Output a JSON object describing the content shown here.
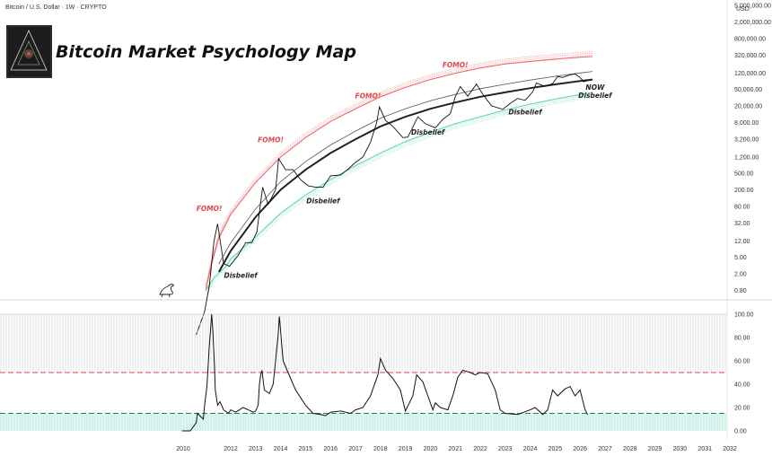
{
  "header": {
    "symbol": "Bitcoin / U.S. Dollar · 1W · CRYPTO",
    "currency": "USD"
  },
  "title": "Bitcoin Market Psychology Map",
  "annotations": {
    "fomo": [
      {
        "text": "FOMO!",
        "date": 2011.1,
        "price": 62
      },
      {
        "text": "FOMO!",
        "date": 2013.6,
        "price": 2700
      },
      {
        "text": "FOMO!",
        "date": 2017.5,
        "price": 30000
      },
      {
        "text": "FOMO!",
        "date": 2021.0,
        "price": 165000
      }
    ],
    "disbelief": [
      {
        "text": "Disbelief",
        "date": 2012.4,
        "price": 1.6
      },
      {
        "text": "Disbelief",
        "date": 2015.7,
        "price": 94
      },
      {
        "text": "Disbelief",
        "date": 2019.9,
        "price": 4100
      },
      {
        "text": "Disbelief",
        "date": 2023.8,
        "price": 12500
      }
    ],
    "now": {
      "line1": "NOW",
      "line2": "Disbelief",
      "date": 2026.6,
      "price": 48000
    }
  },
  "colors": {
    "upper_band": "#f0626a",
    "lower_band": "#5cd6b8",
    "price": "#111111",
    "fair_value": "#222222",
    "upper_threshold": "#e0474c",
    "lower_threshold": "#2f7a66",
    "lower_zone": "#dff6f1"
  },
  "chart_data": [
    {
      "type": "line",
      "scale": "log",
      "x_ticks": [
        "2010",
        "2012",
        "2013",
        "2014",
        "2015",
        "2016",
        "2017",
        "2018",
        "2019",
        "2020",
        "2021",
        "2022",
        "2023",
        "2024",
        "2025",
        "2026",
        "2027",
        "2028",
        "2029",
        "2030",
        "2031",
        "2032"
      ],
      "y_ticks": [
        "0.80",
        "2.00",
        "5.00",
        "12.00",
        "32.00",
        "80.00",
        "200.00",
        "500.00",
        "1,200.00",
        "3,200.00",
        "8,000.00",
        "20,000.00",
        "50,000.00",
        "120,000.00",
        "320,000.00",
        "800,000.00",
        "2,000,000.00",
        "5,000,000.00"
      ],
      "y_axis_label": "USD",
      "price_series": {
        "x": [
          2010.55,
          2010.9,
          2011.1,
          2011.3,
          2011.45,
          2011.7,
          2011.95,
          2012.3,
          2012.6,
          2012.85,
          2013.05,
          2013.28,
          2013.5,
          2013.8,
          2013.92,
          2014.2,
          2014.5,
          2014.8,
          2015.1,
          2015.4,
          2015.7,
          2016.0,
          2016.4,
          2016.7,
          2017.0,
          2017.3,
          2017.6,
          2017.85,
          2017.96,
          2018.2,
          2018.5,
          2018.9,
          2019.1,
          2019.5,
          2019.8,
          2020.2,
          2020.5,
          2020.8,
          2021.0,
          2021.2,
          2021.5,
          2021.85,
          2022.1,
          2022.45,
          2022.9,
          2023.2,
          2023.5,
          2023.8,
          2024.1,
          2024.25,
          2024.6,
          2024.9,
          2025.1,
          2025.3,
          2025.6,
          2025.8,
          2026.0,
          2026.15,
          2026.3
        ],
        "y": [
          0.07,
          0.25,
          1.0,
          12,
          31,
          3.5,
          3.0,
          5.5,
          11,
          11,
          20,
          230,
          90,
          200,
          1100,
          600,
          600,
          350,
          250,
          230,
          230,
          430,
          450,
          620,
          900,
          1200,
          2700,
          8000,
          19000,
          9000,
          6500,
          3500,
          3600,
          11000,
          7500,
          6000,
          9500,
          13000,
          33000,
          58000,
          34000,
          66000,
          38000,
          20000,
          16500,
          23000,
          30000,
          27000,
          43000,
          70000,
          58000,
          68000,
          100000,
          95000,
          110000,
          115000,
          95000,
          75000,
          80000
        ]
      },
      "upper_band": {
        "x": [
          2010.95,
          2011.2,
          2011.5,
          2012,
          2013,
          2014,
          2015,
          2016,
          2017,
          2018,
          2019,
          2020,
          2021,
          2022,
          2023,
          2024,
          2025,
          2026,
          2026.5
        ],
        "y": [
          0.8,
          3.5,
          14,
          52,
          300,
          1200,
          3500,
          8500,
          17000,
          33000,
          55000,
          85000,
          120000,
          160000,
          200000,
          230000,
          260000,
          290000,
          300000
        ]
      },
      "fair_value": {
        "x": [
          2011.5,
          2012,
          2013,
          2014,
          2015,
          2016,
          2017,
          2018,
          2019,
          2020,
          2021,
          2022,
          2023,
          2024,
          2025,
          2026,
          2026.5
        ],
        "y": [
          2.2,
          7,
          45,
          200,
          600,
          1500,
          3200,
          6500,
          11000,
          17000,
          24000,
          33000,
          42000,
          53000,
          65000,
          78000,
          85000
        ]
      },
      "lower_band": {
        "x": [
          2010.95,
          2011.3,
          2011.8,
          2012,
          2013,
          2014,
          2015,
          2016,
          2017,
          2018,
          2019,
          2020,
          2021,
          2022,
          2023,
          2024,
          2025,
          2026,
          2026.5
        ],
        "y": [
          0.8,
          1.6,
          3.0,
          4.5,
          15,
          55,
          150,
          350,
          750,
          1500,
          2800,
          4700,
          7500,
          11000,
          16000,
          22000,
          29000,
          37000,
          42000
        ]
      }
    },
    {
      "type": "line",
      "y_ticks": [
        "100.00",
        "80.00",
        "60.00",
        "40.00",
        "20.00",
        "0.00"
      ],
      "ylim": [
        0,
        100
      ],
      "thresholds": {
        "upper": 50,
        "lower": 15
      },
      "series": {
        "x": [
          2009.95,
          2010.3,
          2010.55,
          2010.6,
          2010.85,
          2010.9,
          2011.0,
          2011.1,
          2011.2,
          2011.25,
          2011.32,
          2011.35,
          2011.45,
          2011.55,
          2011.7,
          2011.9,
          2012.0,
          2012.2,
          2012.5,
          2012.7,
          2012.9,
          2013.0,
          2013.1,
          2013.15,
          2013.2,
          2013.25,
          2013.35,
          2013.55,
          2013.7,
          2013.8,
          2013.9,
          2013.95,
          2014.1,
          2014.3,
          2014.6,
          2015.0,
          2015.3,
          2015.6,
          2015.8,
          2016.0,
          2016.4,
          2016.8,
          2017.0,
          2017.3,
          2017.6,
          2017.9,
          2018.0,
          2018.2,
          2018.5,
          2018.8,
          2019.0,
          2019.3,
          2019.45,
          2019.7,
          2019.9,
          2020.1,
          2020.2,
          2020.4,
          2020.7,
          2020.9,
          2021.1,
          2021.3,
          2021.6,
          2021.8,
          2022.0,
          2022.3,
          2022.6,
          2022.8,
          2023.0,
          2023.5,
          2024.0,
          2024.2,
          2024.5,
          2024.7,
          2024.9,
          2025.1,
          2025.4,
          2025.6,
          2025.8,
          2026.0,
          2026.2,
          2026.3
        ],
        "y": [
          0,
          0,
          7,
          15,
          10,
          22,
          38,
          72,
          100,
          85,
          55,
          35,
          22,
          25,
          18,
          15,
          18,
          16,
          20,
          18,
          16,
          17,
          22,
          40,
          48,
          52,
          35,
          32,
          40,
          60,
          82,
          98,
          60,
          50,
          35,
          22,
          15,
          14,
          13,
          16,
          17,
          15,
          18,
          20,
          30,
          48,
          62,
          52,
          45,
          35,
          17,
          30,
          48,
          42,
          30,
          18,
          24,
          20,
          18,
          30,
          46,
          52,
          50,
          48,
          50,
          49,
          35,
          18,
          15,
          14,
          18,
          20,
          14,
          18,
          35,
          30,
          36,
          38,
          30,
          35,
          18,
          14
        ]
      }
    }
  ]
}
